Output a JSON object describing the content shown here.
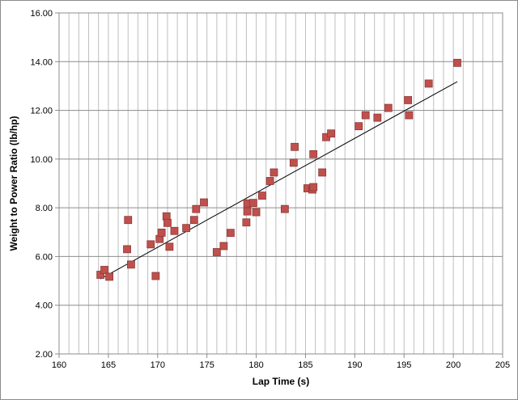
{
  "chart_data": {
    "type": "scatter",
    "title": "",
    "xlabel": "Lap Time (s)",
    "ylabel": "Weight to Power Ratio (lb/hp)",
    "xlim": [
      160,
      205
    ],
    "ylim": [
      2,
      16
    ],
    "x_ticks": [
      160,
      165,
      170,
      175,
      180,
      185,
      190,
      195,
      200,
      205
    ],
    "x_tick_labels": [
      "160",
      "165",
      "170",
      "175",
      "180",
      "185",
      "190",
      "195",
      "200",
      "205"
    ],
    "y_ticks": [
      2,
      4,
      6,
      8,
      10,
      12,
      14,
      16
    ],
    "y_tick_labels": [
      "2.00",
      "4.00",
      "6.00",
      "8.00",
      "10.00",
      "12.00",
      "14.00",
      "16.00"
    ],
    "x_minor_step": 1,
    "grid": "vertical-minor-and-horizontal-major",
    "legend": "none",
    "marker_color": "#c0504d",
    "marker_border": "#8b3a38",
    "trendline": {
      "type": "linear",
      "color": "#000000",
      "x": [
        164.2,
        200.4
      ],
      "y": [
        5.08,
        13.18
      ]
    },
    "points": [
      [
        164.2,
        5.25
      ],
      [
        164.6,
        5.45
      ],
      [
        165.1,
        5.17
      ],
      [
        166.9,
        6.3
      ],
      [
        167.0,
        7.5
      ],
      [
        167.3,
        5.67
      ],
      [
        169.3,
        6.5
      ],
      [
        169.8,
        5.2
      ],
      [
        170.2,
        6.72
      ],
      [
        170.4,
        6.98
      ],
      [
        170.9,
        7.65
      ],
      [
        171.0,
        7.38
      ],
      [
        171.2,
        6.4
      ],
      [
        171.7,
        7.05
      ],
      [
        172.9,
        7.17
      ],
      [
        173.7,
        7.5
      ],
      [
        173.9,
        7.95
      ],
      [
        174.7,
        8.22
      ],
      [
        176.0,
        6.18
      ],
      [
        176.7,
        6.43
      ],
      [
        177.4,
        6.97
      ],
      [
        179.0,
        7.4
      ],
      [
        179.1,
        7.85
      ],
      [
        179.1,
        8.18
      ],
      [
        179.7,
        8.2
      ],
      [
        180.0,
        7.82
      ],
      [
        180.6,
        8.5
      ],
      [
        181.4,
        9.1
      ],
      [
        181.8,
        9.45
      ],
      [
        182.9,
        7.95
      ],
      [
        183.8,
        9.85
      ],
      [
        183.9,
        10.5
      ],
      [
        185.2,
        8.8
      ],
      [
        185.7,
        8.75
      ],
      [
        185.8,
        8.85
      ],
      [
        185.8,
        10.2
      ],
      [
        186.7,
        9.45
      ],
      [
        187.1,
        10.9
      ],
      [
        187.6,
        11.05
      ],
      [
        190.4,
        11.35
      ],
      [
        191.1,
        11.8
      ],
      [
        192.3,
        11.7
      ],
      [
        193.4,
        12.1
      ],
      [
        195.4,
        12.42
      ],
      [
        195.5,
        11.8
      ],
      [
        197.5,
        13.1
      ],
      [
        200.4,
        13.95
      ]
    ]
  }
}
